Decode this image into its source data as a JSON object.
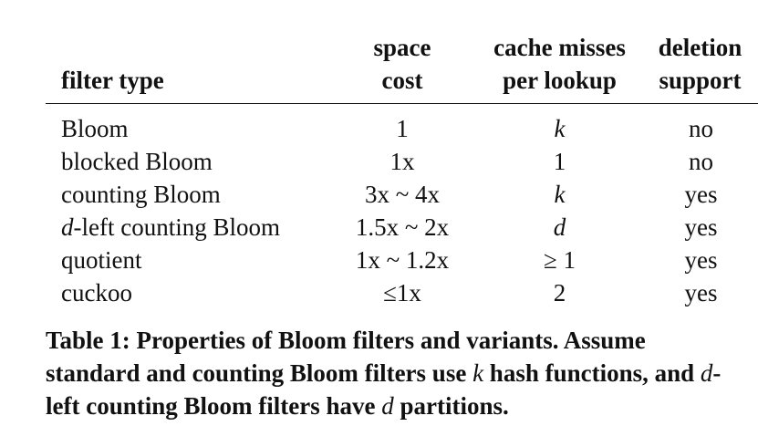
{
  "table": {
    "headers": {
      "filter_type": "filter type",
      "space_cost_line1": "space",
      "space_cost_line2": "cost",
      "cache_misses_line1": "cache misses",
      "cache_misses_line2": "per lookup",
      "deletion_line1": "deletion",
      "deletion_line2": "support"
    },
    "rows": [
      {
        "filter_type": "Bloom",
        "space_cost": "1",
        "cache_misses": "k",
        "deletion_support": "no"
      },
      {
        "filter_type": "blocked Bloom",
        "space_cost": "1x",
        "cache_misses": "1",
        "deletion_support": "no"
      },
      {
        "filter_type": "counting Bloom",
        "space_cost": "3x ~ 4x",
        "cache_misses": "k",
        "deletion_support": "yes"
      },
      {
        "filter_type_prefix": "d",
        "filter_type": "-left counting Bloom",
        "space_cost": "1.5x ~ 2x",
        "cache_misses": "d",
        "deletion_support": "yes"
      },
      {
        "filter_type": "quotient",
        "space_cost": "1x ~ 1.2x",
        "cache_misses": "≥ 1",
        "deletion_support": "yes"
      },
      {
        "filter_type": "cuckoo",
        "space_cost": "≤1x",
        "cache_misses": "2",
        "deletion_support": "yes"
      }
    ]
  },
  "caption": {
    "part1": "Table 1: Properties of Bloom filters and variants. Assume standard and counting Bloom filters use ",
    "k": "k",
    "part2": " hash functions, and ",
    "d1": "d",
    "part3": "-left counting Bloom filters have ",
    "d2": "d",
    "part4": " partitions."
  }
}
